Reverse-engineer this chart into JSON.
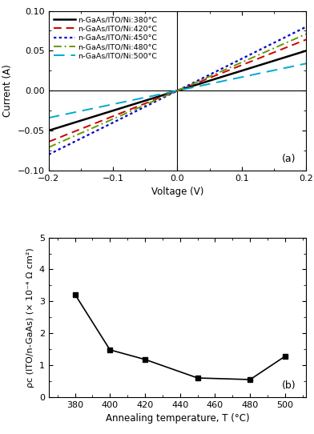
{
  "panel_a": {
    "title": "(a)",
    "xlabel": "Voltage (V)",
    "ylabel": "Current (A)",
    "xlim": [
      -0.2,
      0.2
    ],
    "ylim": [
      -0.1,
      0.1
    ],
    "xticks": [
      -0.2,
      -0.1,
      0,
      0.1,
      0.2
    ],
    "yticks": [
      -0.1,
      -0.05,
      0,
      0.05,
      0.1
    ],
    "lines": [
      {
        "label": "n-GaAs/ITO/Ni:380°C",
        "slope": 0.25,
        "color": "#000000",
        "linestyle": "solid",
        "linewidth": 1.8
      },
      {
        "label": "n-GaAs/ITO/Ni:420°C",
        "slope": 0.32,
        "color": "#cc0000",
        "linestyle": "dashed",
        "linewidth": 1.4
      },
      {
        "label": "n-GaAs/ITO/Ni:450°C",
        "slope": 0.4,
        "color": "#0000cc",
        "linestyle": "dotted",
        "linewidth": 1.6
      },
      {
        "label": "n-GaAs/ITO/Ni:480°C",
        "slope": 0.355,
        "color": "#669900",
        "linestyle": "dashdot",
        "linewidth": 1.4
      },
      {
        "label": "n-GaAs/ITO/Ni:500°C",
        "slope": 0.17,
        "color": "#00aacc",
        "linestyle": "dashed",
        "linewidth": 1.4
      }
    ]
  },
  "panel_b": {
    "title": "(b)",
    "xlabel": "Annealing temperature, T (°C)",
    "ylabel": "ρc (ITO/n-GaAs) (× 10⁻⁴ Ω cm²)",
    "xlim": [
      365,
      512
    ],
    "ylim": [
      0,
      5
    ],
    "xticks": [
      380,
      400,
      420,
      440,
      460,
      480,
      500
    ],
    "yticks": [
      0,
      1,
      2,
      3,
      4,
      5
    ],
    "x_data": [
      380,
      400,
      420,
      450,
      480,
      500
    ],
    "y_data": [
      3.22,
      1.48,
      1.18,
      0.6,
      0.55,
      1.28
    ],
    "marker": "s",
    "markersize": 5,
    "color": "#000000"
  }
}
